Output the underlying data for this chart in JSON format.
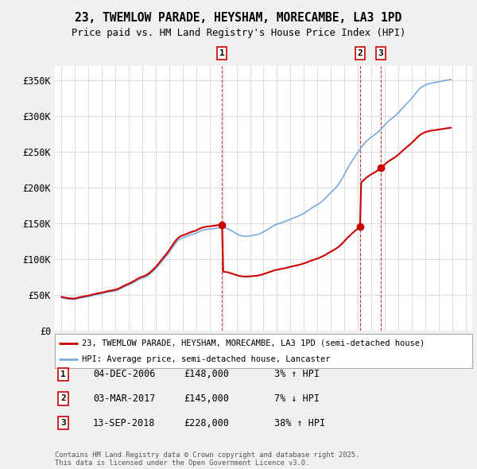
{
  "title": "23, TWEMLOW PARADE, HEYSHAM, MORECAMBE, LA3 1PD",
  "subtitle": "Price paid vs. HM Land Registry's House Price Index (HPI)",
  "ylim": [
    0,
    370000
  ],
  "yticks": [
    0,
    50000,
    100000,
    150000,
    200000,
    250000,
    300000,
    350000
  ],
  "ytick_labels": [
    "£0",
    "£50K",
    "£100K",
    "£150K",
    "£200K",
    "£250K",
    "£300K",
    "£350K"
  ],
  "xlim": [
    1994.5,
    2025.5
  ],
  "background_color": "#f0f0f0",
  "plot_bg_color": "#ffffff",
  "grid_color": "#dddddd",
  "line1_color": "#cc0000",
  "line2_color": "#7aaadd",
  "sale_years": [
    2006.92,
    2017.17,
    2018.71
  ],
  "sale_prices": [
    148000,
    145000,
    228000
  ],
  "sale_labels": [
    "1",
    "2",
    "3"
  ],
  "legend_line1": "23, TWEMLOW PARADE, HEYSHAM, MORECAMBE, LA3 1PD (semi-detached house)",
  "legend_line2": "HPI: Average price, semi-detached house, Lancaster",
  "table_data": [
    [
      "1",
      "04-DEC-2006",
      "£148,000",
      "3% ↑ HPI"
    ],
    [
      "2",
      "03-MAR-2017",
      "£145,000",
      "7% ↓ HPI"
    ],
    [
      "3",
      "13-SEP-2018",
      "£228,000",
      "38% ↑ HPI"
    ]
  ],
  "footer": "Contains HM Land Registry data © Crown copyright and database right 2025.\nThis data is licensed under the Open Government Licence v3.0."
}
